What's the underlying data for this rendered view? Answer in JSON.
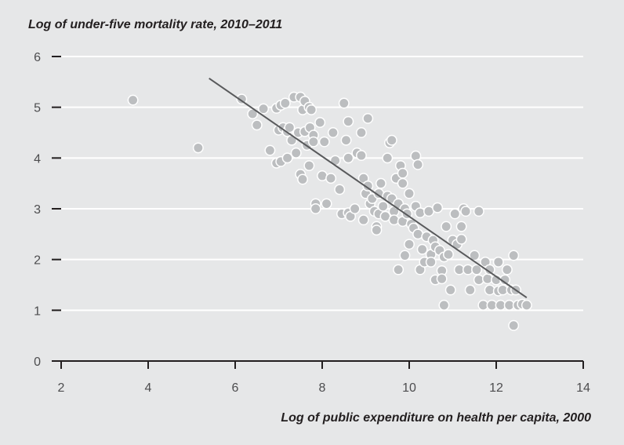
{
  "chart_data": {
    "type": "scatter",
    "title": "Log of under-five mortality rate, 2010–2011",
    "xlabel": "Log of public expenditure on health per capita, 2000",
    "ylabel": "",
    "xlim": [
      2,
      14
    ],
    "ylim": [
      0,
      6
    ],
    "xticks": [
      "2",
      "4",
      "6",
      "8",
      "10",
      "12",
      "14"
    ],
    "yticks": [
      "0",
      "1",
      "2",
      "3",
      "4",
      "5",
      "6"
    ],
    "grid": "horizontal",
    "colors": {
      "background": "#e6e7e8",
      "gridline": "#ffffff",
      "point": "#bcbec0",
      "point_stroke": "#ffffff",
      "trend": "#58595b",
      "axis": "#231f20"
    },
    "trend_line": {
      "x": [
        5.4,
        12.7
      ],
      "y": [
        5.57,
        1.25
      ]
    },
    "points": [
      [
        3.65,
        5.14
      ],
      [
        5.15,
        4.2
      ],
      [
        6.15,
        5.16
      ],
      [
        6.4,
        4.87
      ],
      [
        6.5,
        4.65
      ],
      [
        6.65,
        4.97
      ],
      [
        6.8,
        4.15
      ],
      [
        6.95,
        4.98
      ],
      [
        6.95,
        3.9
      ],
      [
        7.0,
        4.55
      ],
      [
        7.05,
        3.93
      ],
      [
        7.05,
        5.04
      ],
      [
        7.1,
        4.6
      ],
      [
        7.15,
        5.08
      ],
      [
        7.2,
        4.52
      ],
      [
        7.2,
        4.0
      ],
      [
        7.25,
        4.6
      ],
      [
        7.3,
        4.35
      ],
      [
        7.35,
        5.2
      ],
      [
        7.4,
        4.1
      ],
      [
        7.45,
        4.5
      ],
      [
        7.5,
        5.2
      ],
      [
        7.5,
        3.68
      ],
      [
        7.55,
        4.95
      ],
      [
        7.55,
        3.58
      ],
      [
        7.6,
        5.12
      ],
      [
        7.6,
        4.52
      ],
      [
        7.65,
        4.25
      ],
      [
        7.7,
        5.0
      ],
      [
        7.7,
        3.85
      ],
      [
        7.72,
        4.6
      ],
      [
        7.75,
        4.95
      ],
      [
        7.8,
        4.45
      ],
      [
        7.8,
        4.32
      ],
      [
        7.85,
        3.1
      ],
      [
        7.85,
        3.0
      ],
      [
        7.95,
        4.7
      ],
      [
        8.0,
        3.65
      ],
      [
        8.05,
        4.32
      ],
      [
        8.1,
        3.1
      ],
      [
        8.2,
        3.6
      ],
      [
        8.25,
        4.5
      ],
      [
        8.3,
        3.95
      ],
      [
        8.4,
        3.38
      ],
      [
        8.45,
        2.9
      ],
      [
        8.5,
        5.08
      ],
      [
        8.55,
        4.35
      ],
      [
        8.6,
        4.72
      ],
      [
        8.6,
        4.0
      ],
      [
        8.6,
        2.92
      ],
      [
        8.65,
        2.85
      ],
      [
        8.75,
        3.0
      ],
      [
        8.8,
        4.1
      ],
      [
        8.9,
        4.5
      ],
      [
        8.9,
        4.05
      ],
      [
        8.95,
        3.6
      ],
      [
        8.95,
        2.78
      ],
      [
        9.0,
        3.3
      ],
      [
        9.05,
        4.78
      ],
      [
        9.05,
        3.45
      ],
      [
        9.1,
        3.1
      ],
      [
        9.15,
        3.2
      ],
      [
        9.2,
        2.95
      ],
      [
        9.25,
        2.65
      ],
      [
        9.25,
        2.58
      ],
      [
        9.3,
        3.3
      ],
      [
        9.3,
        2.9
      ],
      [
        9.35,
        3.5
      ],
      [
        9.4,
        3.05
      ],
      [
        9.45,
        2.85
      ],
      [
        9.5,
        4.0
      ],
      [
        9.5,
        3.25
      ],
      [
        9.55,
        4.3
      ],
      [
        9.6,
        4.35
      ],
      [
        9.6,
        3.2
      ],
      [
        9.65,
        2.95
      ],
      [
        9.65,
        2.78
      ],
      [
        9.7,
        3.6
      ],
      [
        9.75,
        3.1
      ],
      [
        9.75,
        1.8
      ],
      [
        9.8,
        3.85
      ],
      [
        9.85,
        3.7
      ],
      [
        9.85,
        3.5
      ],
      [
        9.85,
        2.75
      ],
      [
        9.9,
        3.0
      ],
      [
        9.9,
        2.08
      ],
      [
        9.95,
        2.9
      ],
      [
        10.0,
        3.3
      ],
      [
        10.0,
        2.3
      ],
      [
        10.05,
        2.7
      ],
      [
        10.1,
        2.62
      ],
      [
        10.15,
        4.04
      ],
      [
        10.15,
        3.05
      ],
      [
        10.2,
        3.87
      ],
      [
        10.2,
        2.5
      ],
      [
        10.25,
        2.92
      ],
      [
        10.25,
        1.8
      ],
      [
        10.3,
        2.2
      ],
      [
        10.35,
        1.95
      ],
      [
        10.4,
        2.45
      ],
      [
        10.45,
        2.95
      ],
      [
        10.5,
        2.1
      ],
      [
        10.5,
        1.95
      ],
      [
        10.55,
        2.38
      ],
      [
        10.6,
        1.6
      ],
      [
        10.6,
        2.25
      ],
      [
        10.65,
        3.02
      ],
      [
        10.7,
        2.18
      ],
      [
        10.75,
        1.78
      ],
      [
        10.75,
        1.62
      ],
      [
        10.8,
        2.05
      ],
      [
        10.8,
        1.1
      ],
      [
        10.85,
        2.65
      ],
      [
        10.9,
        2.1
      ],
      [
        10.95,
        1.4
      ],
      [
        11.0,
        2.38
      ],
      [
        11.05,
        2.9
      ],
      [
        11.1,
        2.3
      ],
      [
        11.15,
        1.8
      ],
      [
        11.2,
        2.65
      ],
      [
        11.2,
        2.4
      ],
      [
        11.25,
        3.0
      ],
      [
        11.3,
        2.95
      ],
      [
        11.35,
        1.8
      ],
      [
        11.4,
        1.4
      ],
      [
        11.5,
        2.08
      ],
      [
        11.55,
        1.8
      ],
      [
        11.6,
        2.95
      ],
      [
        11.6,
        1.6
      ],
      [
        11.7,
        1.1
      ],
      [
        11.75,
        1.95
      ],
      [
        11.8,
        1.62
      ],
      [
        11.85,
        1.8
      ],
      [
        11.85,
        1.4
      ],
      [
        11.9,
        1.1
      ],
      [
        12.0,
        1.6
      ],
      [
        12.05,
        1.95
      ],
      [
        12.05,
        1.38
      ],
      [
        12.1,
        1.1
      ],
      [
        12.15,
        1.4
      ],
      [
        12.2,
        1.6
      ],
      [
        12.25,
        1.8
      ],
      [
        12.3,
        1.1
      ],
      [
        12.35,
        1.4
      ],
      [
        12.4,
        2.08
      ],
      [
        12.4,
        0.7
      ],
      [
        12.45,
        1.4
      ],
      [
        12.5,
        1.1
      ],
      [
        12.6,
        1.12
      ],
      [
        12.7,
        1.1
      ]
    ]
  }
}
